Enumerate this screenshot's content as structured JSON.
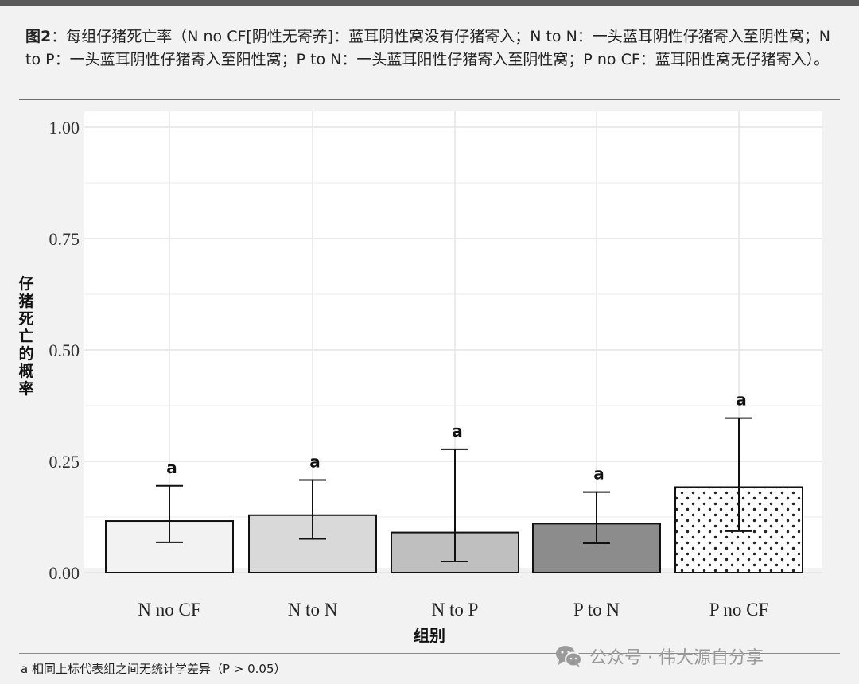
{
  "caption": {
    "label": "图2",
    "text": "：每组仔猪死亡率（N no CF[阴性无寄养]：蓝耳阴性窝没有仔猪寄入；N to N：一头蓝耳阴性仔猪寄入至阴性窝；N to P：一头蓝耳阴性仔猪寄入至阳性窝；P to N：一头蓝耳阳性仔猪寄入至阴性窝；P no CF：蓝耳阳性窝无仔猪寄入）。"
  },
  "chart_data": {
    "type": "bar",
    "xlabel": "组别",
    "ylabel": "仔猪死亡的概率",
    "ylim": [
      0,
      1.0
    ],
    "yticks": [
      0.0,
      0.25,
      0.5,
      0.75,
      1.0
    ],
    "ytick_labels": [
      "0.00",
      "0.25",
      "0.50",
      "0.75",
      "1.00"
    ],
    "grid": true,
    "categories": [
      "N no CF",
      "N to N",
      "N to P",
      "P to N",
      "P no CF"
    ],
    "values": [
      0.116,
      0.129,
      0.09,
      0.11,
      0.192
    ],
    "error_low": [
      0.068,
      0.076,
      0.025,
      0.066,
      0.093
    ],
    "error_high": [
      0.195,
      0.208,
      0.277,
      0.181,
      0.347
    ],
    "significance_labels": [
      "a",
      "a",
      "a",
      "a",
      "a"
    ],
    "bar_fills": [
      "#f2f2f2",
      "#d9d9d9",
      "#bfbfbf",
      "#8c8c8c",
      "dots"
    ]
  },
  "footnote": "a 相同上标代表组之间无统计学差异（P > 0.05）",
  "watermark": {
    "icon": "wechat-icon",
    "text": "公众号 · 伟大源自分享"
  }
}
